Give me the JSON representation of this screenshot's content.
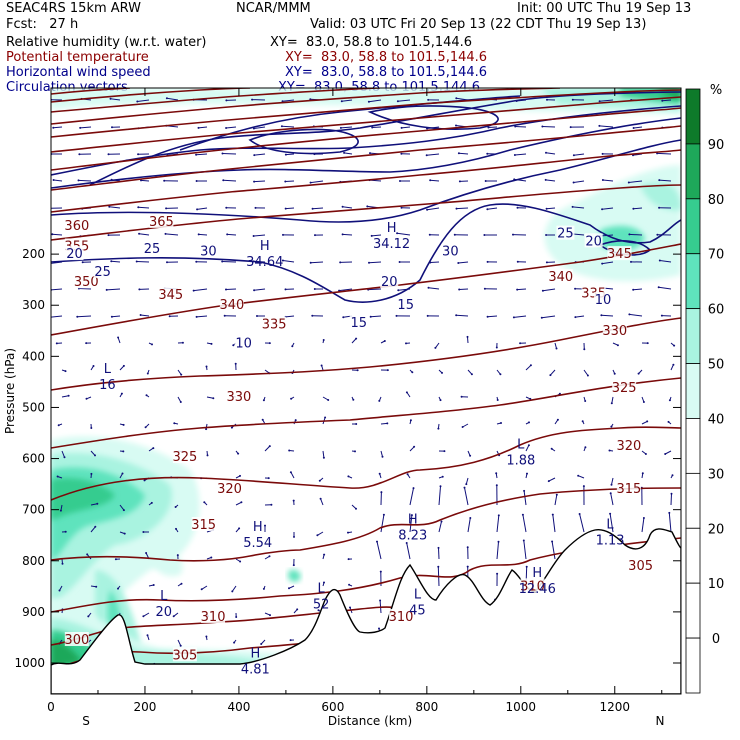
{
  "header": {
    "model": "SEAC4RS 15km ARW",
    "center": "NCAR/MMM",
    "init": "Init: 00 UTC Thu 19 Sep 13",
    "fcst": "Fcst:   27 h",
    "valid": "Valid: 03 UTC Fri 20 Sep 13 (22 CDT Thu 19 Sep 13)",
    "fields": [
      {
        "name": "Relative humidity (w.r.t. water)",
        "xy": "XY=  83.0, 58.8 to 101.5,144.6",
        "color": "#000000"
      },
      {
        "name": "Potential temperature",
        "xy": "XY=  83.0, 58.8 to 101.5,144.6",
        "color": "#8b0000"
      },
      {
        "name": "Horizontal wind speed",
        "xy": "XY=  83.0, 58.8 to 101.5,144.6",
        "color": "#00008b"
      },
      {
        "name": "Circulation vectors",
        "xy": "XY=  83.0, 58.8 to 101.5,144.6",
        "color": "#00008b"
      }
    ]
  },
  "colors": {
    "theta": "#7a0a0a",
    "wind": "#10107a",
    "rh": [
      "#ffffff",
      "#ffffff",
      "#ffffff",
      "#ffffff",
      "#d8fbf3",
      "#a9f3e0",
      "#5fe3bd",
      "#36cc8f",
      "#1ea85a",
      "#0e7a2a"
    ]
  },
  "chart_data": {
    "type": "cross-section",
    "xlabel": "Distance (km)",
    "ylabel": "Pressure (hPa)",
    "xlim": [
      0,
      1330
    ],
    "ylim": [
      1000,
      100
    ],
    "x_ticks": [
      "0",
      "200",
      "400",
      "600",
      "800",
      "1000",
      "1200"
    ],
    "y_ticks": [
      "200",
      "300",
      "400",
      "500",
      "600",
      "700",
      "800",
      "900",
      "1000"
    ],
    "x_ends": {
      "left": "S",
      "right": "N"
    },
    "colorbar": {
      "unit": "%",
      "ticks": [
        "0",
        "10",
        "20",
        "30",
        "40",
        "50",
        "60",
        "70",
        "80",
        "90"
      ]
    },
    "theta_labels": [
      {
        "text": "365",
        "x": 235,
        "p": 137
      },
      {
        "text": "360",
        "x": 55,
        "p": 145
      },
      {
        "text": "355",
        "x": 55,
        "p": 185
      },
      {
        "text": "350",
        "x": 75,
        "p": 255
      },
      {
        "text": "345",
        "x": 255,
        "p": 280
      },
      {
        "text": "340",
        "x": 385,
        "p": 300
      },
      {
        "text": "335",
        "x": 475,
        "p": 338
      },
      {
        "text": "330",
        "x": 400,
        "p": 480
      },
      {
        "text": "325",
        "x": 285,
        "p": 597
      },
      {
        "text": "320",
        "x": 380,
        "p": 660
      },
      {
        "text": "315",
        "x": 325,
        "p": 730
      },
      {
        "text": "310",
        "x": 345,
        "p": 910
      },
      {
        "text": "310",
        "x": 745,
        "p": 910
      },
      {
        "text": "310",
        "x": 1025,
        "p": 850
      },
      {
        "text": "305",
        "x": 285,
        "p": 985
      },
      {
        "text": "300",
        "x": 55,
        "p": 955
      },
      {
        "text": "345",
        "x": 1210,
        "p": 200
      },
      {
        "text": "340",
        "x": 1085,
        "p": 245
      },
      {
        "text": "335",
        "x": 1155,
        "p": 277
      },
      {
        "text": "330",
        "x": 1200,
        "p": 350
      },
      {
        "text": "325",
        "x": 1220,
        "p": 462
      },
      {
        "text": "320",
        "x": 1230,
        "p": 575
      },
      {
        "text": "315",
        "x": 1230,
        "p": 660
      },
      {
        "text": "305",
        "x": 1255,
        "p": 810
      }
    ],
    "wind_labels": [
      {
        "text": "25",
        "x": 1095,
        "p": 160
      },
      {
        "text": "20",
        "x": 1155,
        "p": 175
      },
      {
        "text": "30",
        "x": 850,
        "p": 195
      },
      {
        "text": "20",
        "x": 720,
        "p": 255
      },
      {
        "text": "15",
        "x": 755,
        "p": 300
      },
      {
        "text": "15",
        "x": 655,
        "p": 335
      },
      {
        "text": "10",
        "x": 410,
        "p": 375
      },
      {
        "text": "10",
        "x": 1175,
        "p": 290
      },
      {
        "text": "25",
        "x": 215,
        "p": 190
      },
      {
        "text": "30",
        "x": 335,
        "p": 195
      },
      {
        "text": "25",
        "x": 110,
        "p": 235
      },
      {
        "text": "20",
        "x": 50,
        "p": 200
      }
    ],
    "extrema": [
      {
        "type": "L",
        "value": "16",
        "x": 120,
        "p": 440
      },
      {
        "type": "H",
        "value": "34.64",
        "x": 455,
        "p": 200
      },
      {
        "type": "H",
        "value": "34.12",
        "x": 725,
        "p": 165
      },
      {
        "type": "L",
        "value": "1.88",
        "x": 1000,
        "p": 588
      },
      {
        "type": "H",
        "value": "5.54",
        "x": 440,
        "p": 750
      },
      {
        "type": "H",
        "value": "8.23",
        "x": 770,
        "p": 735
      },
      {
        "type": "L",
        "value": "1.13",
        "x": 1190,
        "p": 745
      },
      {
        "type": "H",
        "value": "12.46",
        "x": 1035,
        "p": 840
      },
      {
        "type": "L",
        "value": "20",
        "x": 240,
        "p": 885
      },
      {
        "type": "L",
        "value": "52",
        "x": 575,
        "p": 870
      },
      {
        "type": "L",
        "value": "45",
        "x": 780,
        "p": 882
      },
      {
        "type": "H",
        "value": "4.81",
        "x": 435,
        "p": 997
      }
    ]
  }
}
